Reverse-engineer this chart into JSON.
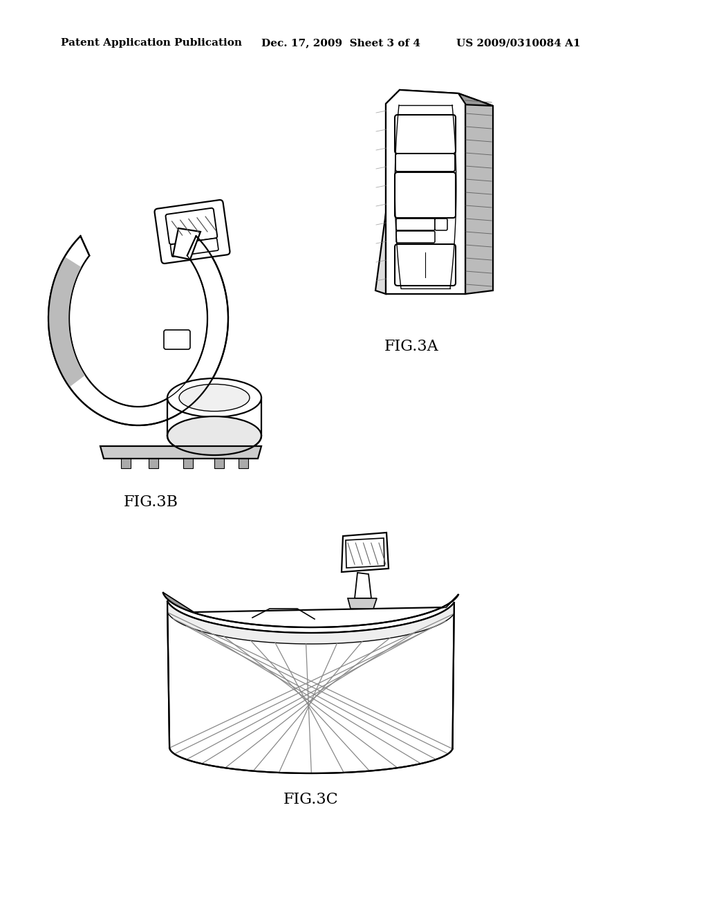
{
  "background_color": "#ffffff",
  "header_text": "Patent Application Publication",
  "header_date": "Dec. 17, 2009  Sheet 3 of 4",
  "header_patent": "US 2009/0310084 A1",
  "fig3a_label": "FIG.3A",
  "fig3b_label": "FIG.3B",
  "fig3c_label": "FIG.3C",
  "line_color": "#000000",
  "shade_color": "#888888",
  "header_fontsize": 11,
  "label_fontsize": 16
}
